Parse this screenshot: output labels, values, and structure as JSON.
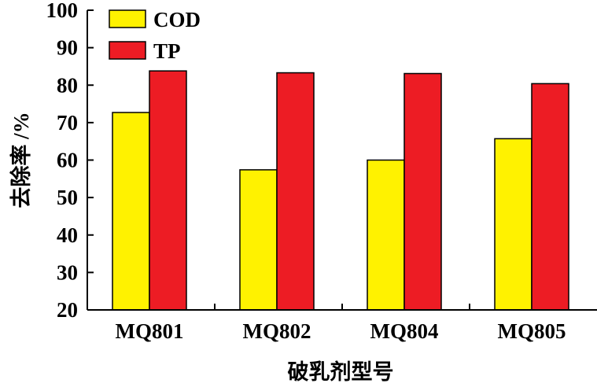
{
  "chart_data": {
    "type": "bar",
    "categories": [
      "MQ801",
      "MQ802",
      "MQ804",
      "MQ805"
    ],
    "series": [
      {
        "name": "COD",
        "color": "#fff200",
        "values": [
          72.7,
          57.4,
          60.0,
          65.7
        ]
      },
      {
        "name": "TP",
        "color": "#ed1c24",
        "values": [
          83.8,
          83.3,
          83.1,
          80.4
        ]
      }
    ],
    "title": "",
    "xlabel": "破乳剂型号",
    "ylabel": "去除率 /%",
    "ylim": [
      20,
      100
    ],
    "yticks": [
      20,
      30,
      40,
      50,
      60,
      70,
      80,
      90,
      100
    ],
    "grid": false,
    "legend_position": "top-left"
  }
}
